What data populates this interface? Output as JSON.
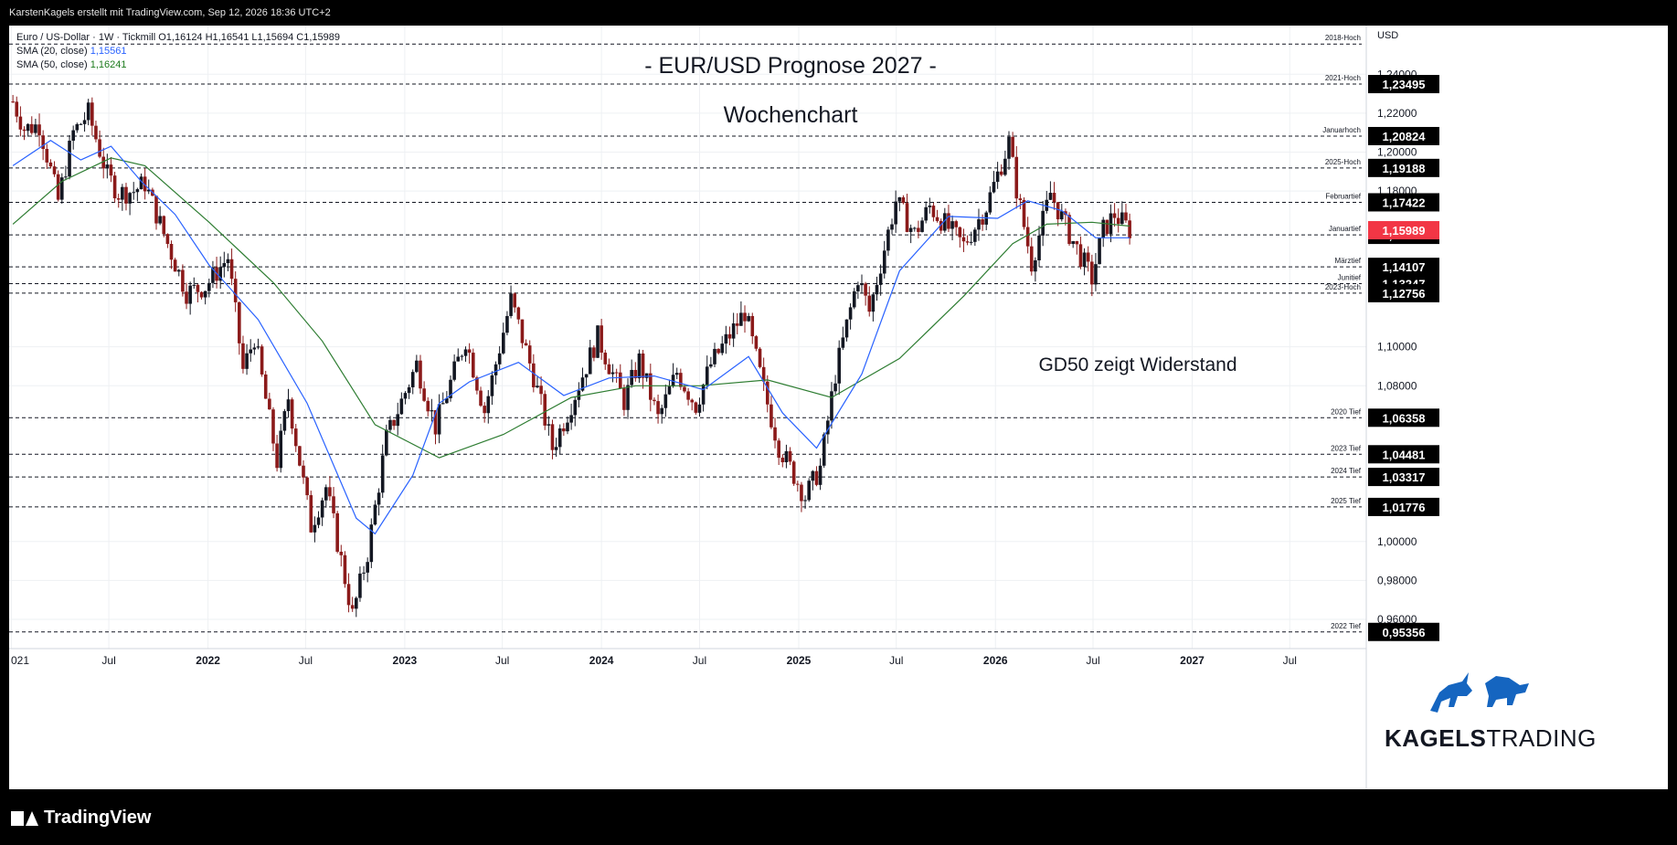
{
  "header": {
    "credit": "KarstenKagels erstellt mit TradingView.com, Sep 12, 2026 18:36 UTC+2"
  },
  "legend": {
    "symbol_line": "Euro / US-Dollar · 1W · Tickmill  O1,16124  H1,16541  L1,15694  C1,15989",
    "sma20_label": "SMA (20, close)",
    "sma20_value": "1,15561",
    "sma50_label": "SMA (50, close)",
    "sma50_value": "1,16241"
  },
  "annotations": {
    "title": "- EUR/USD Prognose 2027 -",
    "subtitle": "Wochenchart",
    "note": "GD50 zeigt Widerstand"
  },
  "branding": {
    "kagels_bold": "KAGELS",
    "kagels_light": "TRADING",
    "footer": "TradingView"
  },
  "colors": {
    "up": "#131722",
    "down": "#8b1a1a",
    "sma20": "#2962ff",
    "sma50": "#2e7d32",
    "price_tag": "#f23645",
    "level_tag": "#000000"
  },
  "chart_data": {
    "type": "candlestick",
    "currency": "USD",
    "ylim": [
      0.945,
      1.265
    ],
    "y_ticks": [
      "1,24000",
      "1,22000",
      "1,20000",
      "1,18000",
      "1,10000",
      "1,08000",
      "1,00000",
      "0,98000",
      "0,96000"
    ],
    "y_tick_values": [
      1.24,
      1.22,
      1.2,
      1.18,
      1.1,
      1.08,
      1.0,
      0.98,
      0.96
    ],
    "x_ticks": [
      "021",
      "Jul",
      "2022",
      "Jul",
      "2023",
      "Jul",
      "2024",
      "Jul",
      "2025",
      "Jul",
      "2026",
      "Jul",
      "2027",
      "Jul"
    ],
    "x_tick_dates": [
      "2021-01-01",
      "2021-07-01",
      "2022-01-01",
      "2022-07-01",
      "2023-01-01",
      "2023-07-01",
      "2024-01-01",
      "2024-07-01",
      "2025-01-01",
      "2025-07-01",
      "2026-01-01",
      "2026-07-01",
      "2027-01-01",
      "2027-07-01"
    ],
    "x_range": [
      "2020-12-28",
      "2027-11-20"
    ],
    "bold_x_ticks": [
      "2022",
      "2023",
      "2024",
      "2025",
      "2026",
      "2027"
    ],
    "last_price": "1,15989",
    "levels": [
      {
        "label": "2018-Hoch",
        "value": 1.2555,
        "tag": ""
      },
      {
        "label": "2021-Hoch",
        "value": 1.23495,
        "tag": "1,23495"
      },
      {
        "label": "Januarhoch",
        "value": 1.20824,
        "tag": "1,20824"
      },
      {
        "label": "2025-Hoch",
        "value": 1.19188,
        "tag": "1,19188"
      },
      {
        "label": "Februartief",
        "value": 1.17422,
        "tag": "1,17422"
      },
      {
        "label": "Januartief",
        "value": 1.15751,
        "tag": "1,15751"
      },
      {
        "label": "Märztief",
        "value": 1.14107,
        "tag": "1,14107"
      },
      {
        "label": "Junitief",
        "value": 1.13247,
        "tag": "1,13247"
      },
      {
        "label": "2023-Hoch",
        "value": 1.12756,
        "tag": "1,12756"
      },
      {
        "label": "2020 Tief",
        "value": 1.06358,
        "tag": "1,06358"
      },
      {
        "label": "2023 Tief",
        "value": 1.04481,
        "tag": "1,04481"
      },
      {
        "label": "2024 Tief",
        "value": 1.03317,
        "tag": "1,03317"
      },
      {
        "label": "2025 Tief",
        "value": 1.01776,
        "tag": "1,01776"
      },
      {
        "label": "2022 Tief",
        "value": 0.95356,
        "tag": "0,95356"
      }
    ],
    "price_path": [
      [
        "2021-01-04",
        1.226
      ],
      [
        "2021-01-25",
        1.212
      ],
      [
        "2021-02-22",
        1.214
      ],
      [
        "2021-03-29",
        1.175
      ],
      [
        "2021-04-26",
        1.21
      ],
      [
        "2021-05-24",
        1.22
      ],
      [
        "2021-06-28",
        1.188
      ],
      [
        "2021-07-19",
        1.179
      ],
      [
        "2021-08-16",
        1.18
      ],
      [
        "2021-09-06",
        1.184
      ],
      [
        "2021-10-11",
        1.158
      ],
      [
        "2021-11-22",
        1.128
      ],
      [
        "2021-12-27",
        1.131
      ],
      [
        "2022-02-07",
        1.146
      ],
      [
        "2022-03-07",
        1.088
      ],
      [
        "2022-03-28",
        1.105
      ],
      [
        "2022-05-09",
        1.041
      ],
      [
        "2022-05-30",
        1.074
      ],
      [
        "2022-07-11",
        1.008
      ],
      [
        "2022-08-08",
        1.028
      ],
      [
        "2022-09-26",
        0.962
      ],
      [
        "2022-10-24",
        0.994
      ],
      [
        "2022-11-28",
        1.053
      ],
      [
        "2023-01-23",
        1.091
      ],
      [
        "2023-02-27",
        1.059
      ],
      [
        "2023-04-24",
        1.104
      ],
      [
        "2023-05-29",
        1.067
      ],
      [
        "2023-07-17",
        1.124
      ],
      [
        "2023-08-28",
        1.085
      ],
      [
        "2023-10-02",
        1.048
      ],
      [
        "2023-10-30",
        1.066
      ],
      [
        "2023-12-25",
        1.105
      ],
      [
        "2024-02-12",
        1.072
      ],
      [
        "2024-03-11",
        1.093
      ],
      [
        "2024-04-15",
        1.063
      ],
      [
        "2024-05-20",
        1.087
      ],
      [
        "2024-06-24",
        1.07
      ],
      [
        "2024-07-22",
        1.091
      ],
      [
        "2024-09-23",
        1.118
      ],
      [
        "2024-10-28",
        1.078
      ],
      [
        "2024-11-25",
        1.049
      ],
      [
        "2025-01-13",
        1.023
      ],
      [
        "2025-02-10",
        1.038
      ],
      [
        "2025-03-10",
        1.086
      ],
      [
        "2025-04-21",
        1.136
      ],
      [
        "2025-05-12",
        1.118
      ],
      [
        "2025-06-30",
        1.175
      ],
      [
        "2025-08-04",
        1.158
      ],
      [
        "2025-09-01",
        1.172
      ],
      [
        "2025-11-03",
        1.152
      ],
      [
        "2025-12-15",
        1.172
      ],
      [
        "2026-01-26",
        1.205
      ],
      [
        "2026-02-09",
        1.181
      ],
      [
        "2026-03-09",
        1.143
      ],
      [
        "2026-04-13",
        1.179
      ],
      [
        "2026-05-18",
        1.158
      ],
      [
        "2026-06-29",
        1.135
      ],
      [
        "2026-07-20",
        1.16
      ],
      [
        "2026-08-10",
        1.168
      ],
      [
        "2026-09-07",
        1.16
      ]
    ],
    "sma20_path": [
      [
        "2021-01-04",
        1.193
      ],
      [
        "2021-03-15",
        1.206
      ],
      [
        "2021-05-10",
        1.196
      ],
      [
        "2021-07-05",
        1.203
      ],
      [
        "2021-08-30",
        1.185
      ],
      [
        "2021-11-01",
        1.168
      ],
      [
        "2022-01-03",
        1.142
      ],
      [
        "2022-04-04",
        1.114
      ],
      [
        "2022-07-04",
        1.071
      ],
      [
        "2022-10-03",
        1.012
      ],
      [
        "2022-11-07",
        1.004
      ],
      [
        "2023-01-16",
        1.034
      ],
      [
        "2023-03-06",
        1.071
      ],
      [
        "2023-05-01",
        1.082
      ],
      [
        "2023-07-31",
        1.092
      ],
      [
        "2023-10-23",
        1.075
      ],
      [
        "2024-01-15",
        1.084
      ],
      [
        "2024-04-08",
        1.085
      ],
      [
        "2024-07-08",
        1.078
      ],
      [
        "2024-09-30",
        1.095
      ],
      [
        "2024-12-02",
        1.066
      ],
      [
        "2025-02-03",
        1.048
      ],
      [
        "2025-04-28",
        1.086
      ],
      [
        "2025-07-07",
        1.139
      ],
      [
        "2025-10-06",
        1.167
      ],
      [
        "2026-01-05",
        1.166
      ],
      [
        "2026-03-02",
        1.175
      ],
      [
        "2026-05-04",
        1.17
      ],
      [
        "2026-07-06",
        1.156
      ],
      [
        "2026-09-07",
        1.156
      ]
    ],
    "sma50_path": [
      [
        "2021-01-04",
        1.163
      ],
      [
        "2021-04-05",
        1.185
      ],
      [
        "2021-07-05",
        1.197
      ],
      [
        "2021-09-06",
        1.193
      ],
      [
        "2022-01-03",
        1.164
      ],
      [
        "2022-05-02",
        1.133
      ],
      [
        "2022-08-01",
        1.103
      ],
      [
        "2022-11-07",
        1.06
      ],
      [
        "2023-03-06",
        1.043
      ],
      [
        "2023-07-03",
        1.055
      ],
      [
        "2023-11-06",
        1.074
      ],
      [
        "2024-03-04",
        1.08
      ],
      [
        "2024-07-01",
        1.08
      ],
      [
        "2024-11-04",
        1.083
      ],
      [
        "2025-03-03",
        1.074
      ],
      [
        "2025-07-07",
        1.094
      ],
      [
        "2025-11-03",
        1.126
      ],
      [
        "2026-02-02",
        1.153
      ],
      [
        "2026-04-06",
        1.163
      ],
      [
        "2026-06-29",
        1.164
      ],
      [
        "2026-09-07",
        1.162
      ]
    ]
  }
}
